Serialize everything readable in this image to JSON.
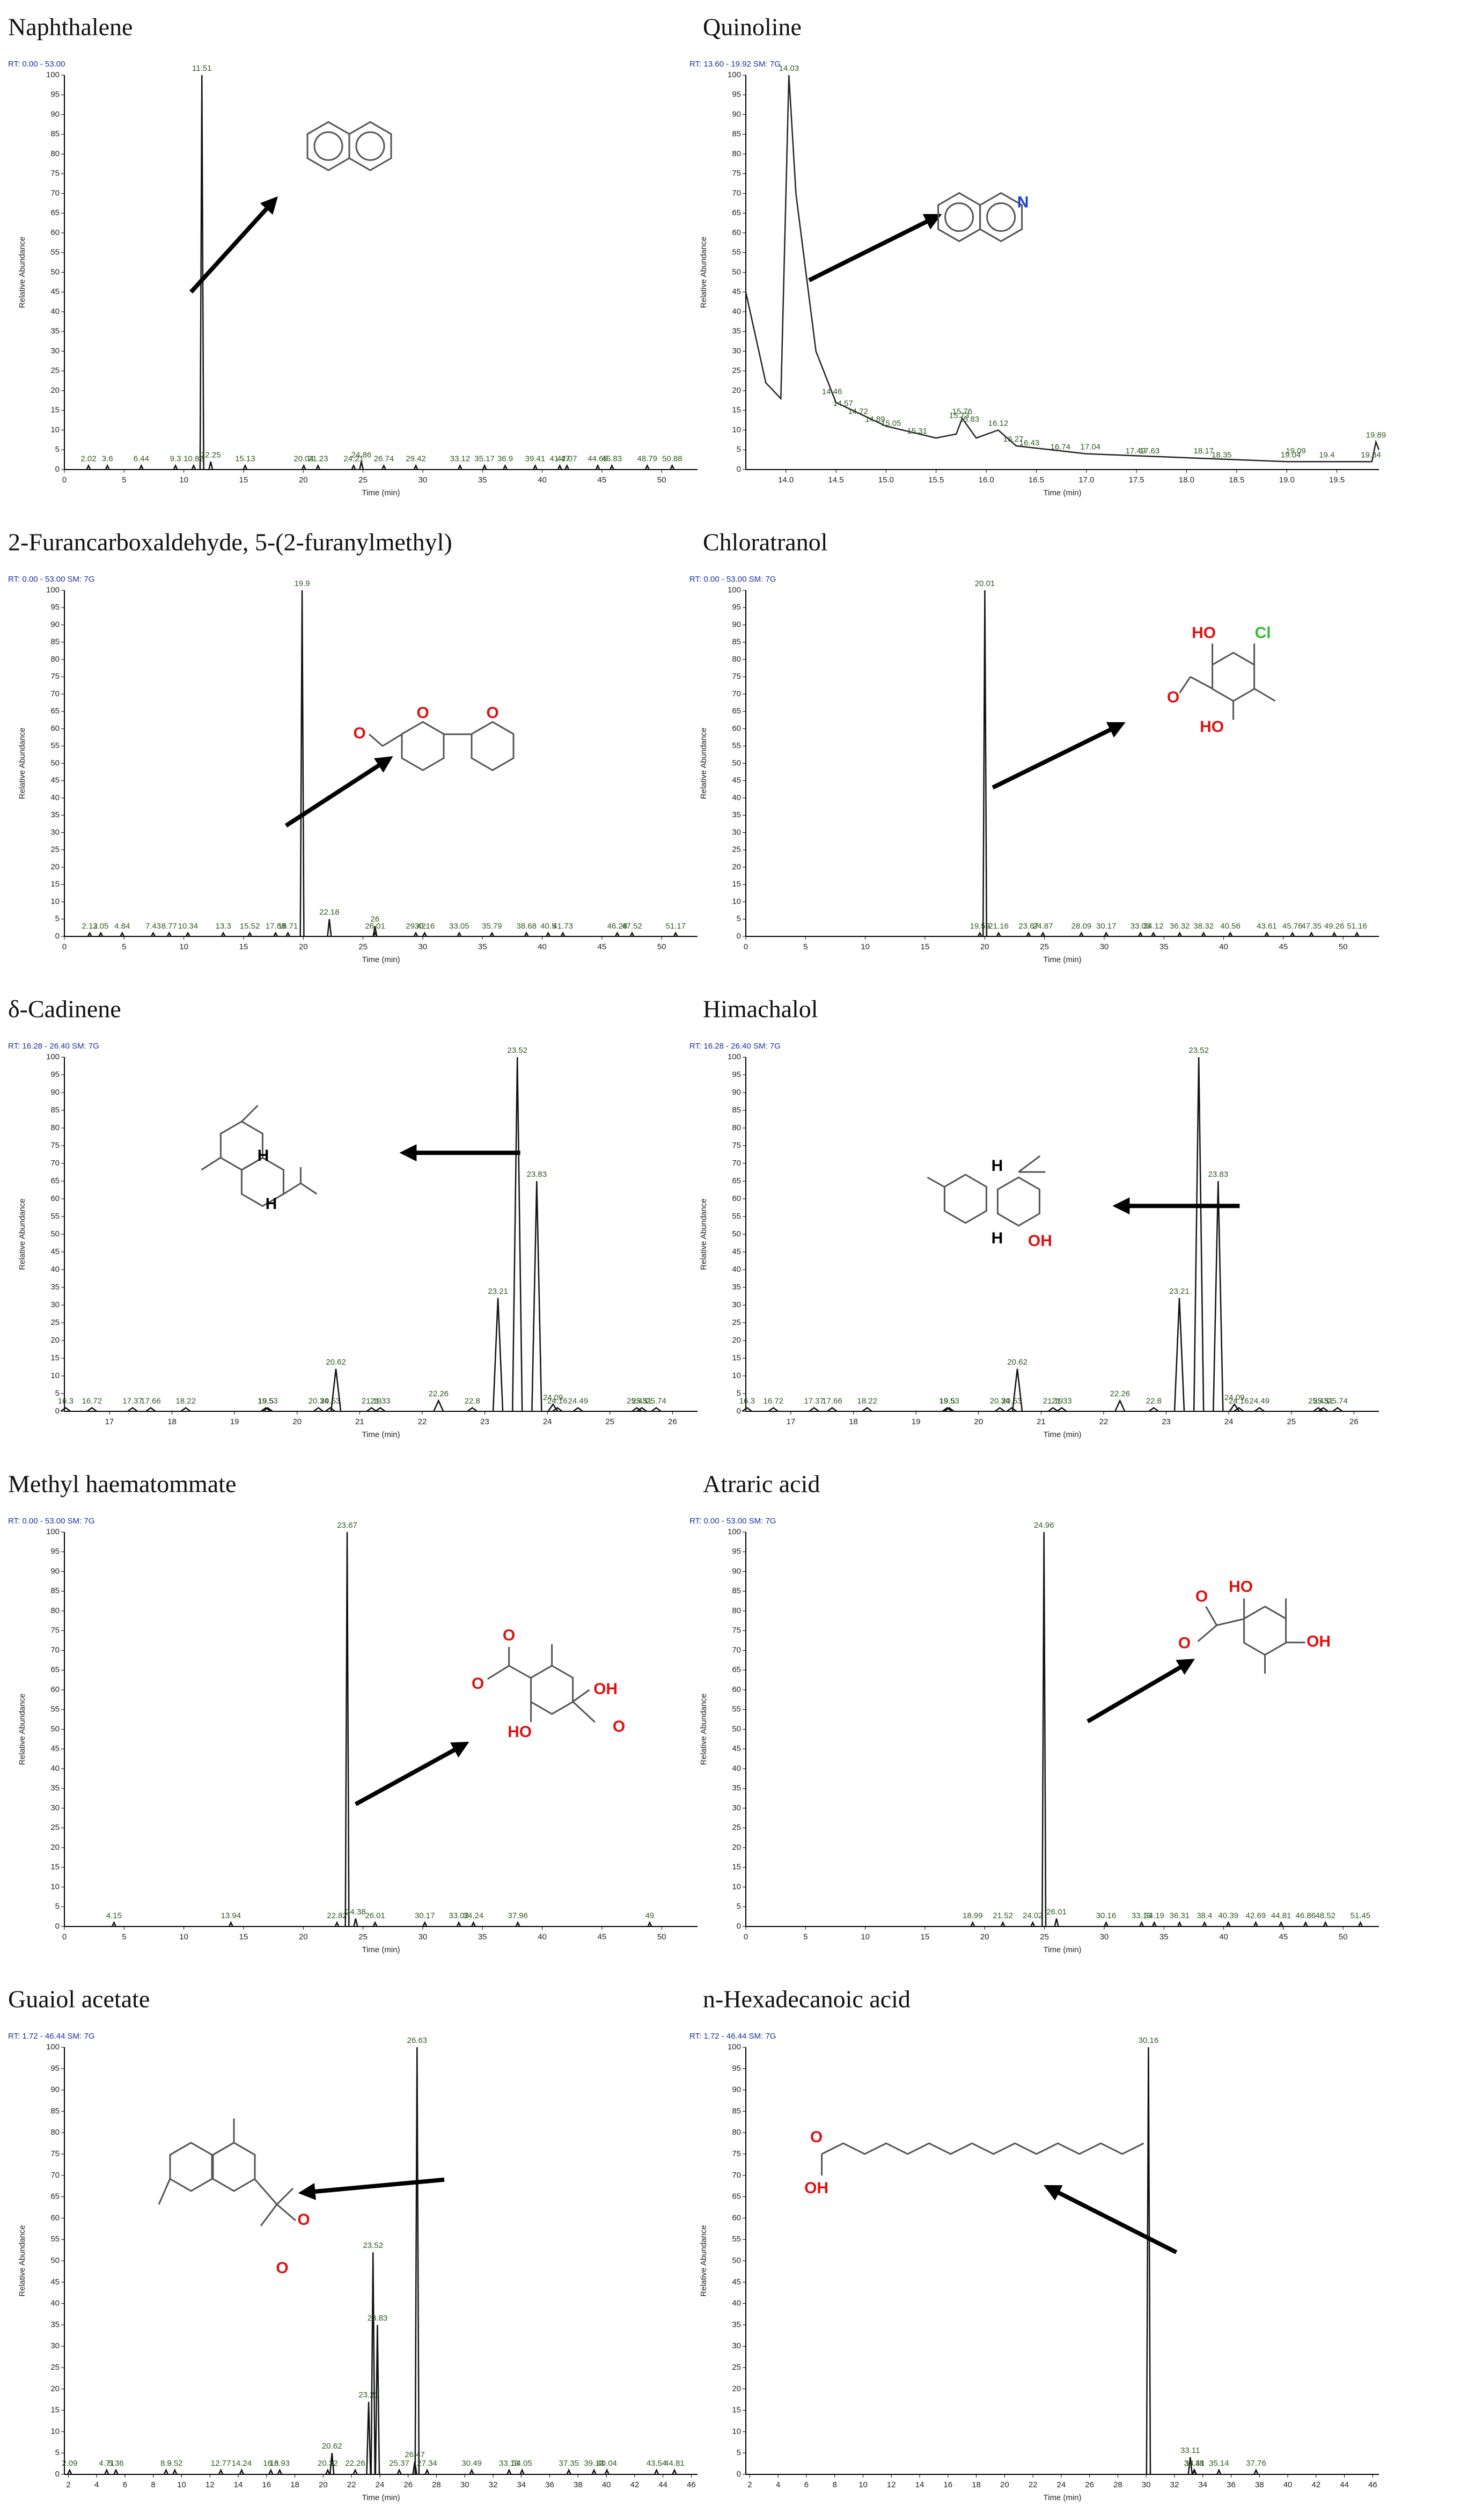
{
  "chart_data": [
    {
      "type": "line",
      "title": "Naphthalene",
      "rt_label": "RT: 0.00 - 53.00",
      "xlabel": "Time (min)",
      "ylabel": "Relative Abundance",
      "xlim": [
        0,
        53
      ],
      "xticks": [
        0,
        5,
        10,
        15,
        20,
        25,
        30,
        35,
        40,
        45,
        50
      ],
      "ylim": [
        0,
        100
      ],
      "yticks": [
        0,
        5,
        10,
        15,
        20,
        25,
        30,
        35,
        40,
        45,
        50,
        55,
        60,
        65,
        70,
        75,
        80,
        85,
        90,
        95,
        100
      ],
      "peaks": {
        "x": [
          2.02,
          3.6,
          6.44,
          9.3,
          10.82,
          11.51,
          12.25,
          15.13,
          20.04,
          21.23,
          24.21,
          24.86,
          26.74,
          29.42,
          33.12,
          35.17,
          36.9,
          39.41,
          41.47,
          42.07,
          44.65,
          45.83,
          48.79,
          50.88
        ],
        "y": [
          1,
          1,
          1,
          1,
          1,
          100,
          2,
          1,
          1,
          1,
          1,
          2,
          1,
          1,
          1,
          1,
          1,
          1,
          1,
          1,
          1,
          1,
          1,
          1
        ]
      }
    },
    {
      "type": "line",
      "title": "Quinoline",
      "rt_label": "RT: 13.60 - 19.92 SM: 7G",
      "xlabel": "Time (min)",
      "ylabel": "Relative Abundance",
      "xlim": [
        13.6,
        19.92
      ],
      "xticks": [
        {
          "value": 14,
          "label": "14.0"
        },
        14.5,
        {
          "value": 15,
          "label": "15.0"
        },
        15.5,
        {
          "value": 16,
          "label": "16.0"
        },
        16.5,
        {
          "value": 17,
          "label": "17.0"
        },
        17.5,
        {
          "value": 18,
          "label": "18.0"
        },
        18.5,
        {
          "value": 19,
          "label": "19.0"
        },
        19.5
      ],
      "ylim": [
        0,
        100
      ],
      "yticks": [
        0,
        5,
        10,
        15,
        20,
        25,
        30,
        35,
        40,
        45,
        50,
        55,
        60,
        65,
        70,
        75,
        80,
        85,
        90,
        95,
        100
      ],
      "trace": {
        "x": [
          13.6,
          13.8,
          13.95,
          14.03,
          14.1,
          14.3,
          14.5,
          15.0,
          15.5,
          15.7,
          15.76,
          15.9,
          16.12,
          16.3,
          17.0,
          18.0,
          19.0,
          19.85,
          19.89,
          19.92
        ],
        "y": [
          45,
          22,
          18,
          100,
          70,
          30,
          17,
          11,
          8,
          9,
          13,
          8,
          10,
          6,
          4,
          3,
          2,
          2,
          7,
          5
        ]
      },
      "peaks": {
        "x": [
          14.03,
          14.46,
          14.57,
          14.72,
          14.89,
          15.05,
          15.31,
          15.73,
          15.76,
          15.83,
          16.12,
          16.27,
          16.43,
          16.74,
          17.04,
          17.49,
          17.63,
          18.17,
          18.35,
          19.04,
          19.09,
          19.4,
          19.84,
          19.89
        ],
        "y": [
          100,
          18,
          15,
          13,
          11,
          10,
          8,
          12,
          13,
          11,
          10,
          6,
          5,
          4,
          4,
          3,
          3,
          3,
          2,
          2,
          3,
          2,
          2,
          7
        ]
      },
      "structure_labels": [
        "N"
      ]
    },
    {
      "type": "line",
      "title": "2-Furancarboxaldehyde, 5-(2-furanylmethyl)",
      "rt_label": "RT: 0.00 - 53.00 SM: 7G",
      "xlabel": "Time (min)",
      "ylabel": "Relative Abundance",
      "xlim": [
        0,
        53
      ],
      "xticks": [
        0,
        5,
        10,
        15,
        20,
        25,
        30,
        35,
        40,
        45,
        50
      ],
      "ylim": [
        0,
        100
      ],
      "yticks": [
        0,
        5,
        10,
        15,
        20,
        25,
        30,
        35,
        40,
        45,
        50,
        55,
        60,
        65,
        70,
        75,
        80,
        85,
        90,
        95,
        100
      ],
      "peaks": {
        "x": [
          2.12,
          3.05,
          4.84,
          7.43,
          8.77,
          10.34,
          13.3,
          15.52,
          17.68,
          18.71,
          19.9,
          22.18,
          26.0,
          26.01,
          29.42,
          30.16,
          33.05,
          35.79,
          38.68,
          40.5,
          41.73,
          46.28,
          47.52,
          51.17
        ],
        "y": [
          1,
          1,
          1,
          1,
          1,
          1,
          1,
          1,
          1,
          1,
          100,
          5,
          3,
          1,
          1,
          1,
          1,
          1,
          1,
          1,
          1,
          1,
          1,
          1
        ]
      },
      "structure_labels": [
        "O",
        "O",
        "O"
      ]
    },
    {
      "type": "line",
      "title": "Chloratranol",
      "rt_label": "RT: 0.00 - 53.00 SM: 7G",
      "xlabel": "Time (min)",
      "ylabel": "Relative Abundance",
      "xlim": [
        0,
        53
      ],
      "xticks": [
        0,
        5,
        10,
        15,
        20,
        25,
        30,
        35,
        40,
        45,
        50
      ],
      "ylim": [
        0,
        100
      ],
      "yticks": [
        0,
        5,
        10,
        15,
        20,
        25,
        30,
        35,
        40,
        45,
        50,
        55,
        60,
        65,
        70,
        75,
        80,
        85,
        90,
        95,
        100
      ],
      "peaks": {
        "x": [
          19.59,
          20.01,
          21.16,
          23.67,
          24.87,
          28.09,
          30.17,
          33.03,
          34.12,
          36.32,
          38.32,
          40.56,
          43.61,
          45.76,
          47.35,
          49.26,
          51.16
        ],
        "y": [
          1,
          100,
          1,
          1,
          1,
          1,
          1,
          1,
          1,
          1,
          1,
          1,
          1,
          1,
          1,
          1,
          1
        ]
      },
      "structure_labels": [
        "HO",
        "Cl",
        "O",
        "HO"
      ]
    },
    {
      "type": "line",
      "title": "δ-Cadinene",
      "rt_label": "RT: 16.28 - 26.40 SM: 7G",
      "xlabel": "Time (min)",
      "ylabel": "Relative Abundance",
      "xlim": [
        16.28,
        26.4
      ],
      "xticks": [
        17,
        18,
        19,
        20,
        21,
        22,
        23,
        24,
        25,
        26
      ],
      "ylim": [
        0,
        100
      ],
      "yticks": [
        0,
        5,
        10,
        15,
        20,
        25,
        30,
        35,
        40,
        45,
        50,
        55,
        60,
        65,
        70,
        75,
        80,
        85,
        90,
        95,
        100
      ],
      "peaks": {
        "x": [
          16.3,
          16.72,
          17.37,
          17.66,
          18.22,
          19.53,
          19.5,
          20.34,
          20.53,
          20.62,
          21.19,
          21.33,
          22.26,
          22.8,
          23.21,
          23.52,
          23.83,
          24.09,
          24.16,
          24.49,
          25.43,
          25.51,
          25.74
        ],
        "y": [
          1,
          1,
          1,
          1,
          1,
          1,
          1,
          1,
          1,
          12,
          1,
          1,
          3,
          1,
          32,
          100,
          65,
          2,
          1,
          1,
          1,
          1,
          1
        ]
      },
      "structure_labels": [
        "H",
        "H"
      ]
    },
    {
      "type": "line",
      "title": "Himachalol",
      "rt_label": "RT: 16.28 - 26.40 SM: 7G",
      "xlabel": "Time (min)",
      "ylabel": "Relative Abundance",
      "xlim": [
        16.28,
        26.4
      ],
      "xticks": [
        17,
        18,
        19,
        20,
        21,
        22,
        23,
        24,
        25,
        26
      ],
      "ylim": [
        0,
        100
      ],
      "yticks": [
        0,
        5,
        10,
        15,
        20,
        25,
        30,
        35,
        40,
        45,
        50,
        55,
        60,
        65,
        70,
        75,
        80,
        85,
        90,
        95,
        100
      ],
      "peaks": {
        "x": [
          16.3,
          16.72,
          17.37,
          17.66,
          18.22,
          19.53,
          19.5,
          20.34,
          20.53,
          20.62,
          21.19,
          21.33,
          22.26,
          22.8,
          23.21,
          23.52,
          23.83,
          24.09,
          24.16,
          24.49,
          25.43,
          25.51,
          25.74
        ],
        "y": [
          1,
          1,
          1,
          1,
          1,
          1,
          1,
          1,
          1,
          12,
          1,
          1,
          3,
          1,
          32,
          100,
          65,
          2,
          1,
          1,
          1,
          1,
          1
        ]
      },
      "structure_labels": [
        "H",
        "H",
        "OH"
      ]
    },
    {
      "type": "line",
      "title": "Methyl haematommate",
      "rt_label": "RT: 0.00 - 53.00 SM: 7G",
      "xlabel": "Time (min)",
      "ylabel": "Relative Abundance",
      "xlim": [
        0,
        53
      ],
      "xticks": [
        0,
        5,
        10,
        15,
        20,
        25,
        30,
        35,
        40,
        45,
        50
      ],
      "ylim": [
        0,
        100
      ],
      "yticks": [
        0,
        5,
        10,
        15,
        20,
        25,
        30,
        35,
        40,
        45,
        50,
        55,
        60,
        65,
        70,
        75,
        80,
        85,
        90,
        95,
        100
      ],
      "peaks": {
        "x": [
          4.15,
          13.94,
          22.82,
          23.67,
          24.38,
          26.01,
          30.17,
          33.02,
          34.24,
          37.96,
          49.0
        ],
        "y": [
          1,
          1,
          1,
          100,
          2,
          1,
          1,
          1,
          1,
          1,
          1
        ]
      },
      "structure_labels": [
        "O",
        "O",
        "OH",
        "HO",
        "O"
      ]
    },
    {
      "type": "line",
      "title": "Atraric acid",
      "rt_label": "RT: 0.00 - 53.00 SM: 7G",
      "xlabel": "Time (min)",
      "ylabel": "Relative Abundance",
      "xlim": [
        0,
        53
      ],
      "xticks": [
        0,
        5,
        10,
        15,
        20,
        25,
        30,
        35,
        40,
        45,
        50
      ],
      "ylim": [
        0,
        100
      ],
      "yticks": [
        0,
        5,
        10,
        15,
        20,
        25,
        30,
        35,
        40,
        45,
        50,
        55,
        60,
        65,
        70,
        75,
        80,
        85,
        90,
        95,
        100
      ],
      "peaks": {
        "x": [
          18.99,
          21.52,
          24.02,
          24.96,
          26.01,
          30.16,
          33.13,
          34.19,
          36.31,
          38.4,
          40.39,
          42.69,
          44.81,
          46.86,
          48.52,
          51.45
        ],
        "y": [
          1,
          1,
          1,
          100,
          2,
          1,
          1,
          1,
          1,
          1,
          1,
          1,
          1,
          1,
          1,
          1
        ]
      },
      "structure_labels": [
        "HO",
        "O",
        "O",
        "OH"
      ]
    },
    {
      "type": "line",
      "title": "Guaiol acetate",
      "rt_label": "RT: 1.72 - 46.44 SM: 7G",
      "xlabel": "Time (min)",
      "ylabel": "Relative Abundance",
      "xlim": [
        1.72,
        46.44
      ],
      "xticks": [
        2,
        4,
        6,
        8,
        10,
        12,
        14,
        16,
        18,
        20,
        22,
        24,
        26,
        28,
        30,
        32,
        34,
        36,
        38,
        40,
        42,
        44,
        46
      ],
      "ylim": [
        0,
        100
      ],
      "yticks": [
        0,
        5,
        10,
        15,
        20,
        25,
        30,
        35,
        40,
        45,
        50,
        55,
        60,
        65,
        70,
        75,
        80,
        85,
        90,
        95,
        100
      ],
      "peaks": {
        "x": [
          2.09,
          4.71,
          5.36,
          8.9,
          9.52,
          12.77,
          14.24,
          16.3,
          16.93,
          20.32,
          20.62,
          22.26,
          23.21,
          23.52,
          23.83,
          25.37,
          26.47,
          26.63,
          27.34,
          30.49,
          33.13,
          34.05,
          37.35,
          39.13,
          40.04,
          43.54,
          44.81
        ],
        "y": [
          1,
          1,
          1,
          1,
          1,
          1,
          1,
          1,
          1,
          1,
          5,
          1,
          17,
          52,
          35,
          1,
          3,
          100,
          1,
          1,
          1,
          1,
          1,
          1,
          1,
          1,
          1
        ]
      },
      "structure_labels": [
        "O",
        "O"
      ]
    },
    {
      "type": "line",
      "title": "n-Hexadecanoic acid",
      "rt_label": "RT: 1.72 - 46.44 SM: 7G",
      "xlabel": "Time (min)",
      "ylabel": "Relative Abundance",
      "xlim": [
        1.72,
        46.44
      ],
      "xticks": [
        2,
        4,
        6,
        8,
        10,
        12,
        14,
        16,
        18,
        20,
        22,
        24,
        26,
        28,
        30,
        32,
        34,
        36,
        38,
        40,
        42,
        44,
        46
      ],
      "ylim": [
        0,
        100
      ],
      "yticks": [
        0,
        5,
        10,
        15,
        20,
        25,
        30,
        35,
        40,
        45,
        50,
        55,
        60,
        65,
        70,
        75,
        80,
        85,
        90,
        95,
        100
      ],
      "peaks": {
        "x": [
          30.16,
          33.11,
          33.38,
          33.41,
          35.14,
          37.76
        ],
        "y": [
          100,
          4,
          1,
          1,
          1,
          1
        ]
      },
      "structure_labels": [
        "O",
        "OH"
      ]
    }
  ]
}
